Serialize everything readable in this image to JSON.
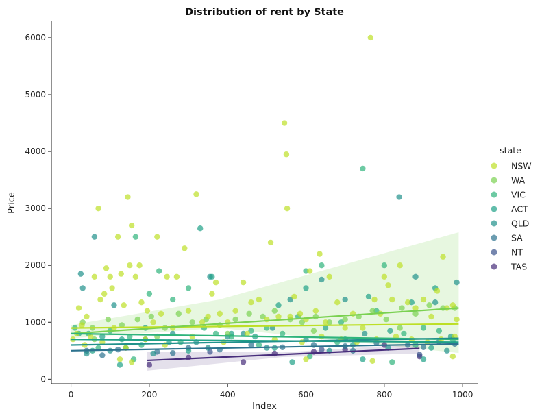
{
  "chart_data": {
    "type": "scatter",
    "title": "Distribution of rent by State",
    "xlabel": "Index",
    "ylabel": "Price",
    "xlim": [
      -50,
      1040
    ],
    "ylim": [
      -80,
      6300
    ],
    "x_ticks": [
      0,
      200,
      400,
      600,
      800,
      1000
    ],
    "y_ticks": [
      0,
      1000,
      2000,
      3000,
      4000,
      5000,
      6000
    ],
    "grid": false,
    "legend": {
      "title": "state",
      "placement": "right"
    },
    "series": [
      {
        "name": "NSW",
        "color": "#bddf26",
        "trend": [
          [
            0,
            900
          ],
          [
            990,
            970
          ]
        ],
        "points": [
          [
            5,
            700
          ],
          [
            15,
            800
          ],
          [
            20,
            1250
          ],
          [
            28,
            950
          ],
          [
            40,
            1100
          ],
          [
            50,
            750
          ],
          [
            60,
            1800
          ],
          [
            70,
            3000
          ],
          [
            75,
            1400
          ],
          [
            85,
            1500
          ],
          [
            90,
            1950
          ],
          [
            100,
            1800
          ],
          [
            105,
            1600
          ],
          [
            110,
            900
          ],
          [
            120,
            2500
          ],
          [
            128,
            1850
          ],
          [
            135,
            1300
          ],
          [
            145,
            3200
          ],
          [
            150,
            2000
          ],
          [
            155,
            2700
          ],
          [
            165,
            1800
          ],
          [
            175,
            2000
          ],
          [
            180,
            1350
          ],
          [
            195,
            1200
          ],
          [
            210,
            1000
          ],
          [
            220,
            2500
          ],
          [
            230,
            1150
          ],
          [
            245,
            1800
          ],
          [
            260,
            900
          ],
          [
            270,
            1800
          ],
          [
            290,
            2300
          ],
          [
            300,
            1200
          ],
          [
            320,
            3250
          ],
          [
            335,
            1000
          ],
          [
            350,
            1100
          ],
          [
            360,
            1500
          ],
          [
            370,
            1700
          ],
          [
            380,
            1150
          ],
          [
            400,
            1000
          ],
          [
            420,
            1200
          ],
          [
            440,
            1700
          ],
          [
            460,
            1350
          ],
          [
            480,
            1400
          ],
          [
            500,
            1050
          ],
          [
            510,
            2400
          ],
          [
            530,
            1100
          ],
          [
            545,
            4500
          ],
          [
            550,
            3950
          ],
          [
            552,
            3000
          ],
          [
            560,
            1100
          ],
          [
            570,
            1450
          ],
          [
            585,
            1150
          ],
          [
            600,
            1050
          ],
          [
            610,
            1900
          ],
          [
            625,
            1200
          ],
          [
            635,
            2200
          ],
          [
            650,
            1000
          ],
          [
            660,
            1800
          ],
          [
            680,
            1350
          ],
          [
            700,
            900
          ],
          [
            720,
            1150
          ],
          [
            745,
            900
          ],
          [
            765,
            6000
          ],
          [
            775,
            1400
          ],
          [
            790,
            1150
          ],
          [
            800,
            1800
          ],
          [
            810,
            1650
          ],
          [
            820,
            1400
          ],
          [
            840,
            2000
          ],
          [
            860,
            1350
          ],
          [
            880,
            1250
          ],
          [
            900,
            1400
          ],
          [
            920,
            1100
          ],
          [
            935,
            1550
          ],
          [
            950,
            2150
          ],
          [
            960,
            1250
          ],
          [
            975,
            1300
          ],
          [
            985,
            1050
          ],
          [
            35,
            600
          ],
          [
            80,
            650
          ],
          [
            140,
            550
          ],
          [
            190,
            700
          ],
          [
            240,
            600
          ],
          [
            310,
            750
          ],
          [
            390,
            650
          ],
          [
            450,
            800
          ],
          [
            520,
            700
          ],
          [
            590,
            650
          ],
          [
            640,
            750
          ],
          [
            690,
            700
          ],
          [
            730,
            650
          ],
          [
            780,
            700
          ],
          [
            830,
            750
          ],
          [
            870,
            700
          ],
          [
            910,
            650
          ],
          [
            945,
            700
          ],
          [
            980,
            750
          ],
          [
            125,
            350
          ],
          [
            155,
            300
          ],
          [
            600,
            350
          ],
          [
            770,
            320
          ],
          [
            975,
            400
          ]
        ]
      },
      {
        "name": "WA",
        "color": "#7ad151",
        "trend": [
          [
            0,
            800
          ],
          [
            990,
            1250
          ]
        ],
        "points": [
          [
            30,
            1000
          ],
          [
            55,
            900
          ],
          [
            95,
            1050
          ],
          [
            130,
            950
          ],
          [
            170,
            1050
          ],
          [
            205,
            1100
          ],
          [
            240,
            900
          ],
          [
            275,
            1150
          ],
          [
            310,
            1000
          ],
          [
            345,
            1050
          ],
          [
            380,
            950
          ],
          [
            420,
            1050
          ],
          [
            455,
            1150
          ],
          [
            490,
            1100
          ],
          [
            520,
            1200
          ],
          [
            560,
            1050
          ],
          [
            590,
            1000
          ],
          [
            625,
            1100
          ],
          [
            660,
            1000
          ],
          [
            700,
            1050
          ],
          [
            735,
            1100
          ],
          [
            770,
            1200
          ],
          [
            805,
            1050
          ],
          [
            845,
            1250
          ],
          [
            880,
            1150
          ],
          [
            915,
            1300
          ],
          [
            950,
            1250
          ],
          [
            980,
            1250
          ],
          [
            60,
            700
          ],
          [
            220,
            750
          ],
          [
            400,
            800
          ],
          [
            620,
            850
          ],
          [
            840,
            900
          ]
        ]
      },
      {
        "name": "VIC",
        "color": "#2fb47c",
        "trend": [
          [
            0,
            800
          ],
          [
            990,
            700
          ]
        ],
        "points": [
          [
            10,
            900
          ],
          [
            45,
            800
          ],
          [
            100,
            850
          ],
          [
            150,
            750
          ],
          [
            165,
            2500
          ],
          [
            200,
            1500
          ],
          [
            225,
            1900
          ],
          [
            260,
            1400
          ],
          [
            300,
            1600
          ],
          [
            340,
            900
          ],
          [
            370,
            800
          ],
          [
            410,
            750
          ],
          [
            460,
            850
          ],
          [
            500,
            900
          ],
          [
            540,
            800
          ],
          [
            580,
            1100
          ],
          [
            600,
            1900
          ],
          [
            640,
            2000
          ],
          [
            690,
            1000
          ],
          [
            745,
            3700
          ],
          [
            780,
            1200
          ],
          [
            800,
            2000
          ],
          [
            850,
            800
          ],
          [
            900,
            900
          ],
          [
            940,
            850
          ],
          [
            975,
            700
          ],
          [
            70,
            550
          ],
          [
            180,
            600
          ],
          [
            280,
            650
          ],
          [
            480,
            600
          ],
          [
            680,
            650
          ],
          [
            880,
            600
          ],
          [
            160,
            350
          ],
          [
            610,
            400
          ],
          [
            820,
            300
          ]
        ]
      },
      {
        "name": "ACT",
        "color": "#1fa187",
        "trend": [
          [
            0,
            700
          ],
          [
            990,
            650
          ]
        ],
        "points": [
          [
            20,
            800
          ],
          [
            80,
            750
          ],
          [
            130,
            700
          ],
          [
            190,
            900
          ],
          [
            250,
            650
          ],
          [
            330,
            2650
          ],
          [
            360,
            1800
          ],
          [
            410,
            800
          ],
          [
            470,
            750
          ],
          [
            530,
            1300
          ],
          [
            600,
            1600
          ],
          [
            650,
            900
          ],
          [
            700,
            700
          ],
          [
            760,
            1450
          ],
          [
            815,
            850
          ],
          [
            870,
            1350
          ],
          [
            930,
            1600
          ],
          [
            970,
            750
          ],
          [
            55,
            500
          ],
          [
            140,
            550
          ],
          [
            300,
            500
          ],
          [
            520,
            550
          ],
          [
            720,
            600
          ],
          [
            920,
            550
          ],
          [
            125,
            250
          ],
          [
            565,
            300
          ],
          [
            745,
            350
          ],
          [
            900,
            350
          ]
        ]
      },
      {
        "name": "QLD",
        "color": "#21918c",
        "trend": [
          [
            0,
            600
          ],
          [
            990,
            720
          ]
        ],
        "points": [
          [
            25,
            1850
          ],
          [
            30,
            1600
          ],
          [
            60,
            2500
          ],
          [
            110,
            1300
          ],
          [
            190,
            700
          ],
          [
            260,
            800
          ],
          [
            320,
            650
          ],
          [
            355,
            1800
          ],
          [
            400,
            750
          ],
          [
            440,
            800
          ],
          [
            515,
            900
          ],
          [
            560,
            1400
          ],
          [
            600,
            700
          ],
          [
            640,
            1750
          ],
          [
            700,
            1400
          ],
          [
            750,
            800
          ],
          [
            838,
            3200
          ],
          [
            880,
            1800
          ],
          [
            930,
            1350
          ],
          [
            985,
            1700
          ],
          [
            40,
            450
          ],
          [
            100,
            500
          ],
          [
            210,
            450
          ],
          [
            350,
            550
          ],
          [
            500,
            550
          ],
          [
            660,
            500
          ],
          [
            810,
            550
          ],
          [
            960,
            500
          ]
        ]
      },
      {
        "name": "SA",
        "color": "#2c728e",
        "trend": [
          [
            0,
            500
          ],
          [
            990,
            620
          ]
        ],
        "points": [
          [
            40,
            500
          ],
          [
            120,
            520
          ],
          [
            220,
            480
          ],
          [
            300,
            550
          ],
          [
            380,
            520
          ],
          [
            460,
            600
          ],
          [
            540,
            560
          ],
          [
            620,
            600
          ],
          [
            700,
            580
          ],
          [
            780,
            640
          ],
          [
            860,
            600
          ],
          [
            940,
            660
          ],
          [
            980,
            620
          ],
          [
            80,
            420
          ],
          [
            260,
            460
          ],
          [
            720,
            500
          ],
          [
            900,
            560
          ]
        ]
      },
      {
        "name": "NT",
        "color": "#3b528b",
        "trend": [],
        "points": [
          [
            355,
            480
          ],
          [
            890,
            430
          ],
          [
            640,
            520
          ]
        ]
      },
      {
        "name": "TAS",
        "color": "#472d7b",
        "trend": [
          [
            195,
            330
          ],
          [
            890,
            540
          ]
        ],
        "points": [
          [
            200,
            250
          ],
          [
            300,
            380
          ],
          [
            440,
            300
          ],
          [
            520,
            450
          ],
          [
            620,
            480
          ],
          [
            700,
            520
          ],
          [
            800,
            600
          ],
          [
            890,
            400
          ]
        ]
      }
    ],
    "confidence_band": {
      "series": "WA",
      "color": "#7ad151",
      "upper": [
        [
          0,
          950
        ],
        [
          380,
          1400
        ],
        [
          990,
          2580
        ]
      ],
      "lower": [
        [
          0,
          720
        ],
        [
          380,
          900
        ],
        [
          990,
          460
        ]
      ]
    },
    "tas_band": {
      "upper": [
        [
          195,
          480
        ],
        [
          540,
          470
        ],
        [
          890,
          620
        ]
      ],
      "lower": [
        [
          195,
          150
        ],
        [
          540,
          390
        ],
        [
          890,
          450
        ]
      ]
    }
  }
}
